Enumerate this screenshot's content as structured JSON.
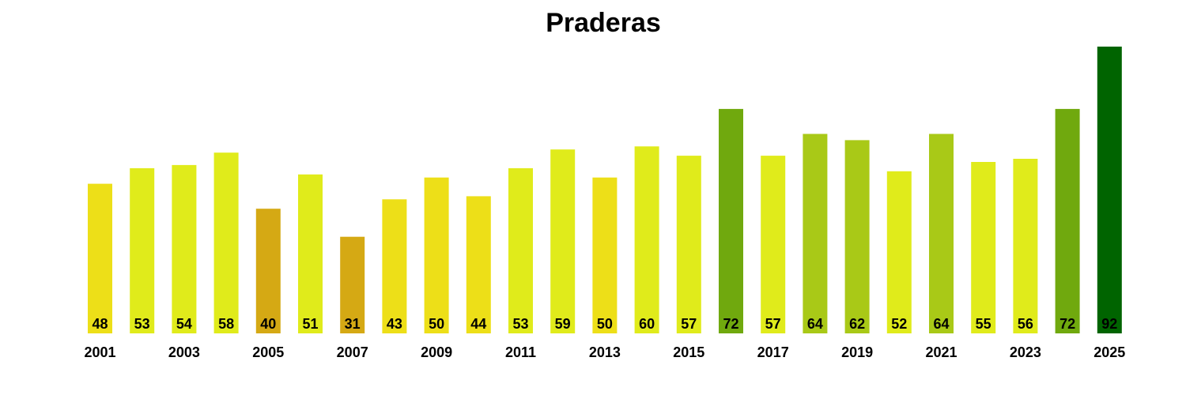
{
  "chart_data": {
    "type": "bar",
    "title": "Praderas",
    "xlabel": "",
    "ylabel": "",
    "categories": [
      "2001",
      "2002",
      "2003",
      "2004",
      "2005",
      "2006",
      "2007",
      "2008",
      "2009",
      "2010",
      "2011",
      "2012",
      "2013",
      "2014",
      "2015",
      "2016",
      "2017",
      "2018",
      "2019",
      "2020",
      "2021",
      "2022",
      "2023",
      "2024",
      "2025"
    ],
    "x_tick_labels": [
      "2001",
      "2003",
      "2005",
      "2007",
      "2009",
      "2011",
      "2013",
      "2015",
      "2017",
      "2019",
      "2021",
      "2023",
      "2025"
    ],
    "values": [
      48,
      53,
      54,
      58,
      40,
      51,
      31,
      43,
      50,
      44,
      53,
      59,
      50,
      60,
      57,
      72,
      57,
      64,
      62,
      52,
      64,
      55,
      56,
      72,
      92
    ],
    "colors": [
      "#eddf18",
      "#e0eb1b",
      "#e0eb1b",
      "#e0eb1b",
      "#d5a914",
      "#e0eb1b",
      "#d5a914",
      "#eddf18",
      "#eddf18",
      "#eddf18",
      "#e0eb1b",
      "#e0eb1b",
      "#eddf18",
      "#e0eb1b",
      "#e0eb1b",
      "#70a90e",
      "#e0eb1b",
      "#a9c917",
      "#a9c917",
      "#e0eb1b",
      "#a9c917",
      "#e0eb1b",
      "#e0eb1b",
      "#70a90e",
      "#006400"
    ],
    "ylim": [
      0,
      92
    ],
    "grid": false,
    "legend": "none",
    "data_labels": "inside-bottom"
  }
}
